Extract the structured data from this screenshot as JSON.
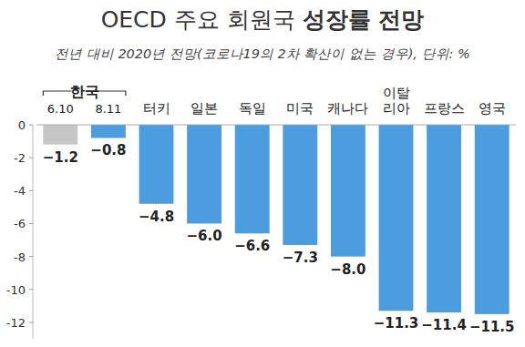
{
  "chart_data": {
    "type": "bar",
    "title": "OECD 주요 회원국 성장률 전망",
    "subtitle": "전년 대비 2020년 전망(코로나19의 2차 확산이 없는 경우), 단위: %",
    "annotations": [
      "한국"
    ],
    "categories": [
      "6.10",
      "8.11",
      "터키",
      "일본",
      "독일",
      "미국",
      "캐나다",
      "이탈리아",
      "프랑스",
      "영국"
    ],
    "values": [
      -1.2,
      -0.8,
      -4.8,
      -6.0,
      -6.6,
      -7.3,
      -8.0,
      -11.3,
      -11.4,
      -11.5
    ],
    "value_labels": [
      "−1.2",
      "−0.8",
      "−4.8",
      "−6.0",
      "−6.6",
      "−7.3",
      "−8.0",
      "−11.3",
      "−11.4",
      "−11.5"
    ],
    "colors": [
      "#c6c6c6",
      "#4b9de0",
      "#4b9de0",
      "#4b9de0",
      "#4b9de0",
      "#4b9de0",
      "#4b9de0",
      "#4b9de0",
      "#4b9de0",
      "#4b9de0"
    ],
    "ylim": [
      -13,
      0
    ],
    "yticks": [
      0,
      -2,
      -4,
      -6,
      -8,
      -10,
      -12
    ],
    "grid": false,
    "data_labels": true
  }
}
